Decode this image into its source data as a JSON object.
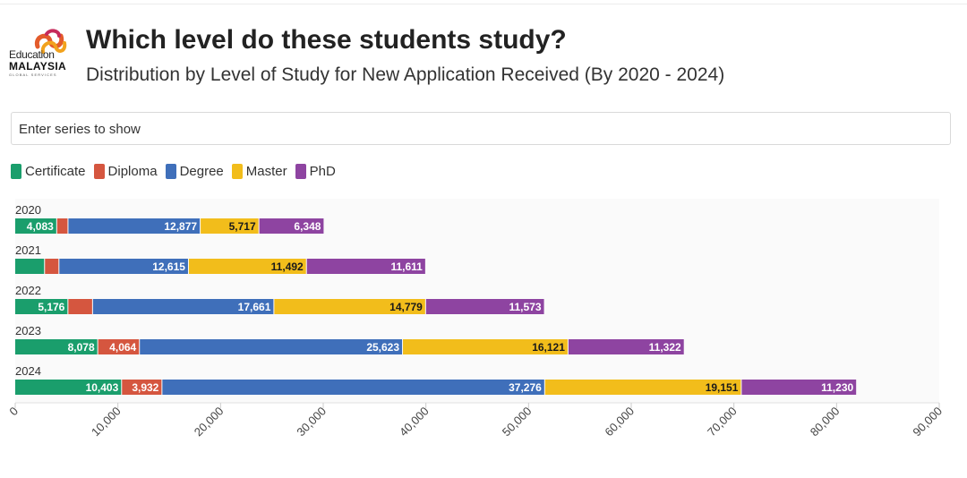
{
  "header": {
    "logo_line1": "Education",
    "logo_line2": "MALAYSIA",
    "logo_line3": "GLOBAL SERVICES",
    "title": "Which level do these students study?",
    "subtitle": "Distribution by Level of Study for New Application Received (By 2020 - 2024)"
  },
  "search": {
    "placeholder": "Enter series to show"
  },
  "legend": [
    {
      "label": "Certificate",
      "color": "#1a9e6c"
    },
    {
      "label": "Diploma",
      "color": "#d5563f"
    },
    {
      "label": "Degree",
      "color": "#3f6fba"
    },
    {
      "label": "Master",
      "color": "#f2bd1b"
    },
    {
      "label": "PhD",
      "color": "#8e44a1"
    }
  ],
  "chart_data": {
    "type": "bar",
    "orientation": "horizontal",
    "stacked": true,
    "title": "Which level do these students study?",
    "subtitle": "Distribution by Level of Study for New Application Received (By 2020 - 2024)",
    "categories": [
      "2020",
      "2021",
      "2022",
      "2023",
      "2024"
    ],
    "series": [
      {
        "name": "Certificate",
        "color": "#1a9e6c",
        "values": [
          4083,
          2900,
          5176,
          8078,
          10403
        ],
        "labels": [
          "4,083",
          "",
          "5,176",
          "8,078",
          "10,403"
        ]
      },
      {
        "name": "Diploma",
        "color": "#d5563f",
        "values": [
          1100,
          1400,
          2400,
          4064,
          3932
        ],
        "labels": [
          "",
          "",
          "",
          "4,064",
          "3,932"
        ]
      },
      {
        "name": "Degree",
        "color": "#3f6fba",
        "values": [
          12877,
          12615,
          17661,
          25623,
          37276
        ],
        "labels": [
          "12,877",
          "12,615",
          "17,661",
          "25,623",
          "37,276"
        ]
      },
      {
        "name": "Master",
        "color": "#f2bd1b",
        "values": [
          5717,
          11492,
          14779,
          16121,
          19151
        ],
        "labels": [
          "5,717",
          "11,492",
          "14,779",
          "16,121",
          "19,151"
        ]
      },
      {
        "name": "PhD",
        "color": "#8e44a1",
        "values": [
          6348,
          11611,
          11573,
          11322,
          11230
        ],
        "labels": [
          "6,348",
          "11,611",
          "11,573",
          "11,322",
          "11,230"
        ]
      }
    ],
    "xlim": [
      0,
      90000
    ],
    "xticks": [
      0,
      10000,
      20000,
      30000,
      40000,
      50000,
      60000,
      70000,
      80000,
      90000
    ],
    "xtick_labels": [
      "0",
      "10,000",
      "20,000",
      "30,000",
      "40,000",
      "50,000",
      "60,000",
      "70,000",
      "80,000",
      "90,000"
    ],
    "xlabel": "",
    "ylabel": "",
    "grid": false,
    "legend_position": "top-left"
  }
}
